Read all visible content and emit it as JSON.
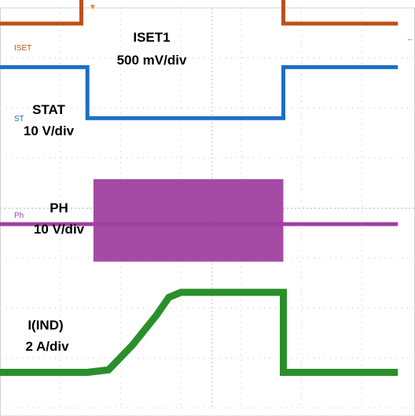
{
  "chart_data": {
    "type": "line",
    "title": "",
    "grid": true,
    "channels": [
      {
        "name": "ISET1",
        "marker": "ISET",
        "scale": "500 mV/div",
        "color": "#c0501a",
        "x": [
          0,
          1.35,
          1.35,
          4.7,
          4.7,
          6.6
        ],
        "y": [
          0.66,
          0.66,
          1.48,
          1.48,
          0.66,
          0.66
        ]
      },
      {
        "name": "STAT",
        "marker": "ST",
        "scale": "10 V/div",
        "color": "#1a6fc4",
        "x": [
          0,
          1.45,
          1.45,
          4.7,
          4.7,
          6.6
        ],
        "y": [
          0.56,
          0.56,
          -0.46,
          -0.46,
          0.56,
          0.56
        ]
      },
      {
        "name": "PH",
        "marker": "Ph",
        "scale": "10 V/div",
        "color": "#a040a0",
        "x": [
          0,
          1.4,
          1.55,
          4.65,
          4.7,
          6.6
        ],
        "y": [
          0,
          0,
          0,
          0,
          0,
          0
        ],
        "band": {
          "x_start": 1.55,
          "x_end": 4.7,
          "low": -0.75,
          "high": 0.9
        }
      },
      {
        "name": "I(IND)",
        "marker": "",
        "scale": "2 A/div",
        "color": "#2a8f2a",
        "x": [
          0,
          1.45,
          1.8,
          2.2,
          2.6,
          2.8,
          3.0,
          4.7,
          4.7,
          6.6
        ],
        "y": [
          -0.15,
          -0.15,
          -0.1,
          0.4,
          1.0,
          1.35,
          1.45,
          1.45,
          -0.15,
          -0.15
        ]
      }
    ],
    "annotations": [
      {
        "channel": "ISET1",
        "line1": "ISET1",
        "line2": "500 mV/div"
      },
      {
        "channel": "STAT",
        "line1": "STAT",
        "line2": "10 V/div"
      },
      {
        "channel": "PH",
        "line1": "PH",
        "line2": "10 V/div"
      },
      {
        "channel": "I(IND)",
        "line1": "I(IND)",
        "line2": "2 A/div"
      }
    ],
    "trigger_marker": "▼",
    "right_marker": "←"
  }
}
